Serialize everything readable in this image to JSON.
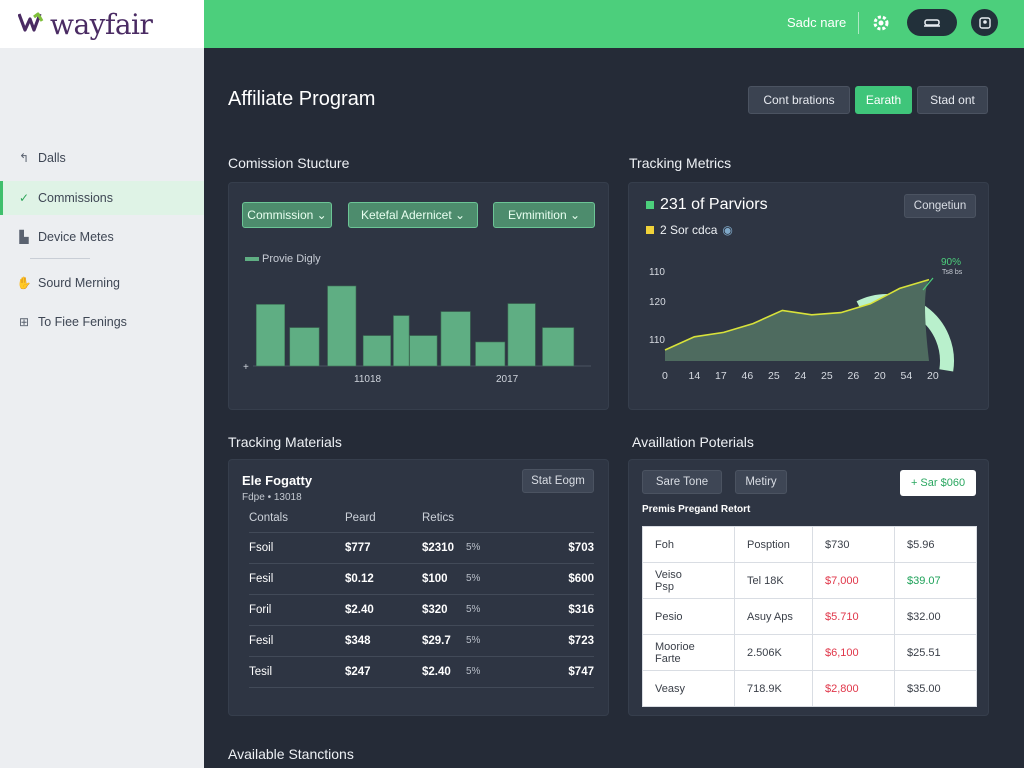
{
  "header": {
    "logo_text": "wayfair",
    "user_label": "Sadc nare",
    "colors": {
      "brand_green": "#4ccf7c",
      "logo_purple": "#4a2b63"
    }
  },
  "sidebar": {
    "items": [
      {
        "label": "Dalls",
        "icon": "back-arrow-icon"
      },
      {
        "label": "Commissions",
        "icon": "check-icon",
        "active": true
      },
      {
        "label": "Device Metes",
        "icon": "device-icon"
      },
      {
        "label": "Sourd Merning",
        "icon": "thumb-icon"
      },
      {
        "label": "To Fiee Fenings",
        "icon": "grid-icon"
      }
    ]
  },
  "page": {
    "title": "Affiliate Program",
    "buttons": {
      "contributions": "Cont brations",
      "earth": "Earath",
      "stad": "Stad ont"
    }
  },
  "commission_structure": {
    "title": "Comission Stucture",
    "dropdowns": [
      "Commission",
      "Ketefal Adernicet",
      "Evmimition"
    ],
    "legend": "Provie Digly",
    "chart_data": {
      "type": "bar",
      "title": "",
      "legend": [
        "Provie Digly"
      ],
      "tick_labels": [
        "11018",
        "2017"
      ],
      "values": [
        77,
        48,
        100,
        38,
        63,
        38,
        68,
        30,
        78,
        48
      ],
      "colors": {
        "bar": "#5fae83"
      }
    }
  },
  "tracking_metrics": {
    "title": "Tracking Metrics",
    "metric_primary": "231 of Parviors",
    "metric_secondary": "2 Sor cdca",
    "button": "Congetiun",
    "gauge_label": "90%",
    "gauge_sub": "Ts8 bs",
    "chart_data": {
      "type": "area",
      "x_ticks": [
        "0",
        "14",
        "17",
        "46",
        "25",
        "24",
        "25",
        "26",
        "20",
        "54",
        "20"
      ],
      "y_ticks": [
        "110",
        "120",
        "110"
      ],
      "series": [
        {
          "values": [
            110,
            116,
            118,
            122,
            128,
            126,
            127,
            131,
            138,
            142
          ]
        }
      ],
      "gauge_value": 0.9,
      "colors": {
        "line": "#d8e23a",
        "gauge": "#b9f0cc",
        "fill": "#4e6b5f"
      }
    }
  },
  "tracking_materials": {
    "title": "Tracking Materials",
    "card_title": "Ele Fogatty",
    "card_sub": "Fdpe • 13018",
    "button": "Stat Eogm",
    "columns": [
      "Contals",
      "Peard",
      "Retics"
    ],
    "rows": [
      {
        "name": "Fsoil",
        "a": "$777",
        "b": "$2310",
        "pct": "5%",
        "c": "$703"
      },
      {
        "name": "Fesil",
        "a": "$0.12",
        "b": "$100",
        "pct": "5%",
        "c": "$600"
      },
      {
        "name": "Foril",
        "a": "$2.40",
        "b": "$320",
        "pct": "5%",
        "c": "$316"
      },
      {
        "name": "Fesil",
        "a": "$348",
        "b": "$29.7",
        "pct": "5%",
        "c": "$723"
      },
      {
        "name": "Tesil",
        "a": "$247",
        "b": "$2.40",
        "pct": "5%",
        "c": "$747"
      }
    ]
  },
  "availation": {
    "title": "Availlation Poterials",
    "tabs": [
      "Sare Tone",
      "Metiry"
    ],
    "add_button": "+ Sar $060",
    "subtitle": "Premis Pregand Retort",
    "rows": [
      {
        "c1": "Foh",
        "c2": "Posption",
        "c3": "$730",
        "c4": "$5.96",
        "c3_color": "normal",
        "c4_color": "normal"
      },
      {
        "c1": "Veiso\nPsp",
        "c2": "Tel 18K",
        "c3": "$7,000",
        "c4": "$39.07",
        "c3_color": "red",
        "c4_color": "green"
      },
      {
        "c1": "Pesio",
        "c2": "Asuy Aps",
        "c3": "$5.710",
        "c4": "$32.00",
        "c3_color": "red",
        "c4_color": "normal"
      },
      {
        "c1": "Moorioe\nFarte",
        "c2": "2.506K",
        "c3": "$6,100",
        "c4": "$25.51",
        "c3_color": "red",
        "c4_color": "normal"
      },
      {
        "c1": "Veasy",
        "c2": "718.9K",
        "c3": "$2,800",
        "c4": "$35.00",
        "c3_color": "red",
        "c4_color": "normal"
      }
    ]
  },
  "footer_section": {
    "title": "Available Stanctions"
  }
}
